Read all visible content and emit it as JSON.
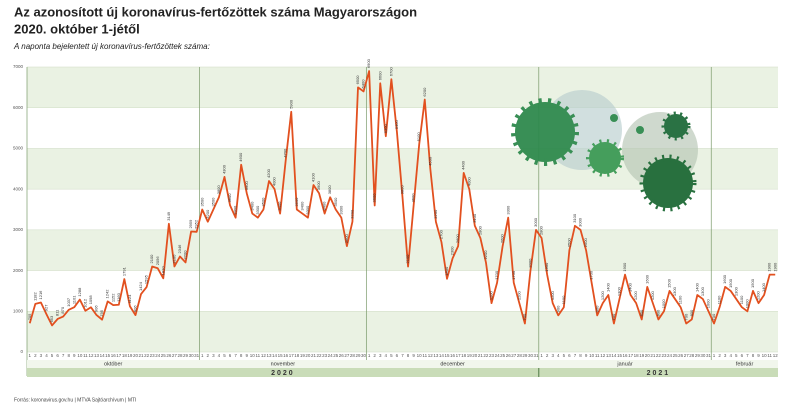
{
  "chart_data": {
    "type": "line",
    "title": "Az azonosított új koronavírus-fertőzöttek száma Magyarországon",
    "subtitle": "2020. október 1-jétől",
    "y_label": "A naponta bejelentett új koronavírus-fertőzöttek száma:",
    "source": "Forrás: koronavirus.gov.hu | MTVA Sajtóarchívum | MTI",
    "color": "#e2501f",
    "ylim": [
      0,
      7000
    ],
    "yticks": [
      0,
      1000,
      2000,
      3000,
      4000,
      5000,
      6000,
      7000
    ],
    "months": [
      "október",
      "november",
      "december",
      "január",
      "február"
    ],
    "years": [
      "2020",
      "2021"
    ],
    "categories": [
      "1",
      "2",
      "3",
      "4",
      "5",
      "6",
      "7",
      "8",
      "9",
      "10",
      "11",
      "12",
      "13",
      "14",
      "15",
      "16",
      "17",
      "18",
      "19",
      "20",
      "21",
      "22",
      "23",
      "24",
      "25",
      "26",
      "27",
      "28",
      "29",
      "30",
      "31",
      "1",
      "2",
      "3",
      "4",
      "5",
      "6",
      "7",
      "8",
      "9",
      "10",
      "11",
      "12",
      "13",
      "14",
      "15",
      "16",
      "17",
      "18",
      "19",
      "20",
      "21",
      "22",
      "23",
      "24",
      "25",
      "26",
      "27",
      "28",
      "29",
      "30",
      "1",
      "2",
      "3",
      "4",
      "5",
      "6",
      "7",
      "8",
      "9",
      "10",
      "11",
      "12",
      "13",
      "14",
      "15",
      "16",
      "17",
      "18",
      "19",
      "20",
      "21",
      "22",
      "23",
      "24",
      "25",
      "26",
      "27",
      "28",
      "29",
      "30",
      "31",
      "1",
      "2",
      "3",
      "4",
      "5",
      "6",
      "7",
      "8",
      "9",
      "10",
      "11",
      "12",
      "13",
      "14",
      "15",
      "16",
      "17",
      "18",
      "19",
      "20",
      "21",
      "22",
      "23",
      "24",
      "25",
      "26",
      "27",
      "28",
      "29",
      "30",
      "31",
      "1",
      "2",
      "3",
      "4",
      "5",
      "6",
      "7",
      "8",
      "9",
      "10",
      "11",
      "12"
    ],
    "values": [
      705,
      1182,
      1216,
      927,
      653,
      811,
      870,
      1037,
      1101,
      1288,
      1012,
      1098,
      906,
      795,
      1242,
      1152,
      1160,
      1791,
      1124,
      906,
      1424,
      1595,
      2100,
      2056,
      1810,
      3149,
      2100,
      2346,
      2200,
      2959,
      2952,
      3500,
      3200,
      3500,
      3800,
      4300,
      3600,
      3300,
      4600,
      3900,
      3400,
      3300,
      3500,
      4200,
      4000,
      3400,
      4700,
      5900,
      3500,
      3400,
      3300,
      4100,
      3900,
      3400,
      3800,
      3500,
      3300,
      2600,
      3200,
      6500,
      6400,
      6900,
      3600,
      6600,
      5300,
      6700,
      5400,
      3800,
      2100,
      3600,
      5100,
      6200,
      4500,
      3200,
      2700,
      1800,
      2300,
      2600,
      4400,
      4000,
      3100,
      2800,
      2200,
      1200,
      1700,
      2600,
      3300,
      1700,
      1200,
      700,
      2000,
      3000,
      2800,
      1900,
      1200,
      900,
      1100,
      2500,
      3100,
      3000,
      2500,
      1700,
      900,
      1200,
      1400,
      700,
      1300,
      1900,
      1400,
      1200,
      800,
      1600,
      1200,
      800,
      1000,
      1500,
      1300,
      1100,
      700,
      800,
      1400,
      1300,
      1000,
      700,
      1100,
      1600,
      1500,
      1300,
      1100,
      1000,
      1500,
      1200,
      1400,
      1900,
      1900
    ]
  }
}
